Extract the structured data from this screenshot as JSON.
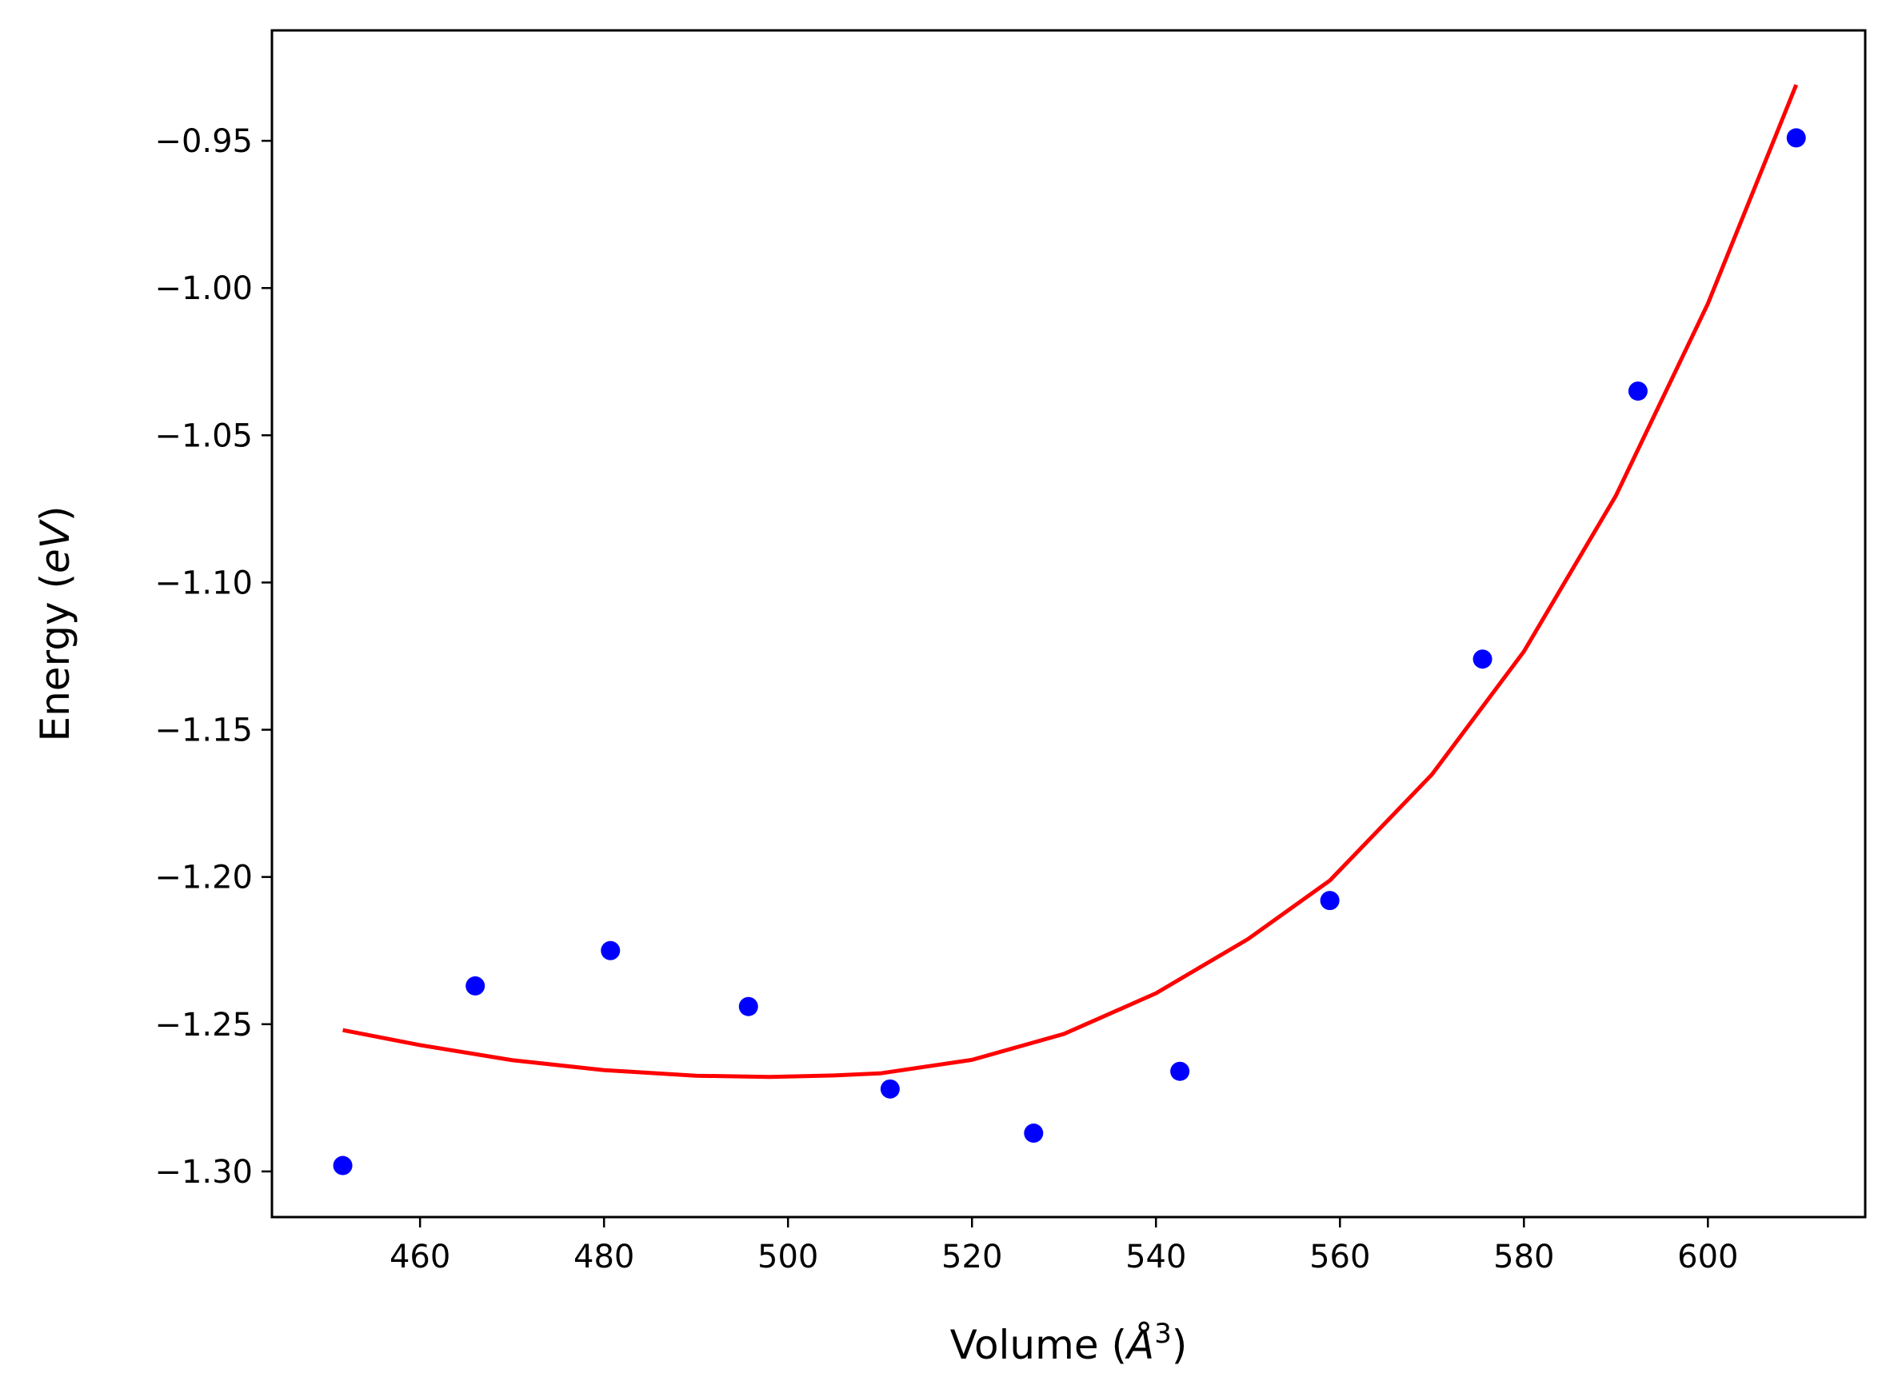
{
  "chart_data": {
    "type": "scatter",
    "title": "",
    "xlabel_main": "Volume (",
    "xlabel_unit": "Å",
    "xlabel_sup": "3",
    "xlabel_close": ")",
    "ylabel_main": "Energy (",
    "ylabel_unit": "eV",
    "ylabel_close": ")",
    "xlim": [
      443.9,
      617.1
    ],
    "ylim": [
      -1.3155,
      -0.9125
    ],
    "xticks": [
      460,
      480,
      500,
      520,
      540,
      560,
      580,
      600
    ],
    "xtick_labels": [
      "460",
      "480",
      "500",
      "520",
      "540",
      "560",
      "580",
      "600"
    ],
    "yticks": [
      -0.95,
      -1.0,
      -1.05,
      -1.1,
      -1.15,
      -1.2,
      -1.25,
      -1.3
    ],
    "ytick_labels": [
      "−0.95",
      "−1.00",
      "−1.05",
      "−1.10",
      "−1.15",
      "−1.20",
      "−1.25",
      "−1.30"
    ],
    "grid": false,
    "series": [
      {
        "kind": "scatter",
        "color": "#0000ff",
        "x": [
          451.6,
          466.0,
          480.7,
          495.7,
          511.1,
          526.7,
          542.6,
          558.9,
          575.5,
          592.4,
          609.6
        ],
        "y": [
          -1.298,
          -1.237,
          -1.225,
          -1.244,
          -1.272,
          -1.287,
          -1.266,
          -1.208,
          -1.126,
          -1.035,
          -0.949
        ]
      },
      {
        "kind": "line",
        "color": "#ff0000",
        "x": [
          451.6,
          460,
          470,
          480,
          490,
          498,
          505,
          510,
          520,
          530,
          540,
          550,
          558.9,
          570,
          580,
          590,
          600,
          609.6
        ],
        "y": [
          -1.252,
          -1.2571,
          -1.2622,
          -1.2656,
          -1.2675,
          -1.2679,
          -1.2674,
          -1.2667,
          -1.2621,
          -1.2533,
          -1.2395,
          -1.2211,
          -1.2012,
          -1.1652,
          -1.1234,
          -1.0705,
          -1.0053,
          -0.931
        ]
      }
    ]
  }
}
